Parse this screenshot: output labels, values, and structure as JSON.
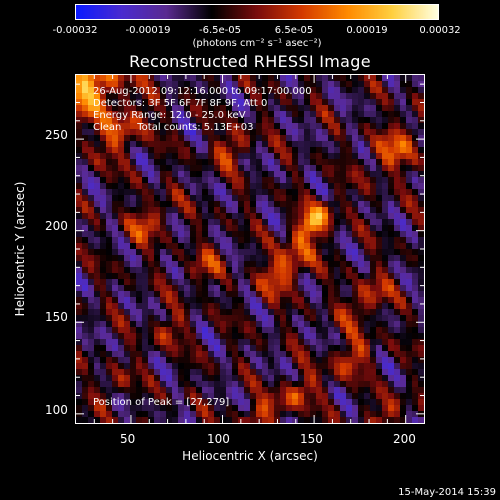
{
  "chart_data": {
    "type": "heatmap",
    "title": "Reconstructed RHESSI Image",
    "xlabel": "Heliocentric X (arcsec)",
    "ylabel": "Heliocentric Y (arcsec)",
    "xlim": [
      20,
      210
    ],
    "ylim": [
      95,
      285
    ],
    "x_ticks": [
      "50",
      "100",
      "150",
      "200"
    ],
    "y_ticks": [
      "100",
      "150",
      "200",
      "250"
    ],
    "colorbar": {
      "ticks": [
        "-0.00032",
        "-0.00019",
        "-6.5e-05",
        "6.5e-05",
        "0.00019",
        "0.00032"
      ],
      "unit_label": "(photons cm⁻² s⁻¹ asec⁻²)",
      "range": [
        -0.00032,
        0.00032
      ],
      "colors": [
        "#0b1aff",
        "#4a2bd0",
        "#5a2a90",
        "#000000",
        "#7a0c0c",
        "#d43a00",
        "#ff8a00",
        "#ffd040",
        "#ffffe0"
      ]
    },
    "annotations": {
      "time": "26-Aug-2012 09:12:16.000 to 09:17:00.000",
      "detectors": "Detectors: 3F 5F 6F 7F 8F 9F, Att 0",
      "energy": "Energy Range: 12.0 - 25.0 keV",
      "clean": "Clean     Total counts: 5.13E+03",
      "peak": "Position of Peak = [27,279]"
    },
    "peak_position": [
      27,
      279
    ],
    "grid": false
  },
  "timestamp": "15-May-2014 15:39"
}
